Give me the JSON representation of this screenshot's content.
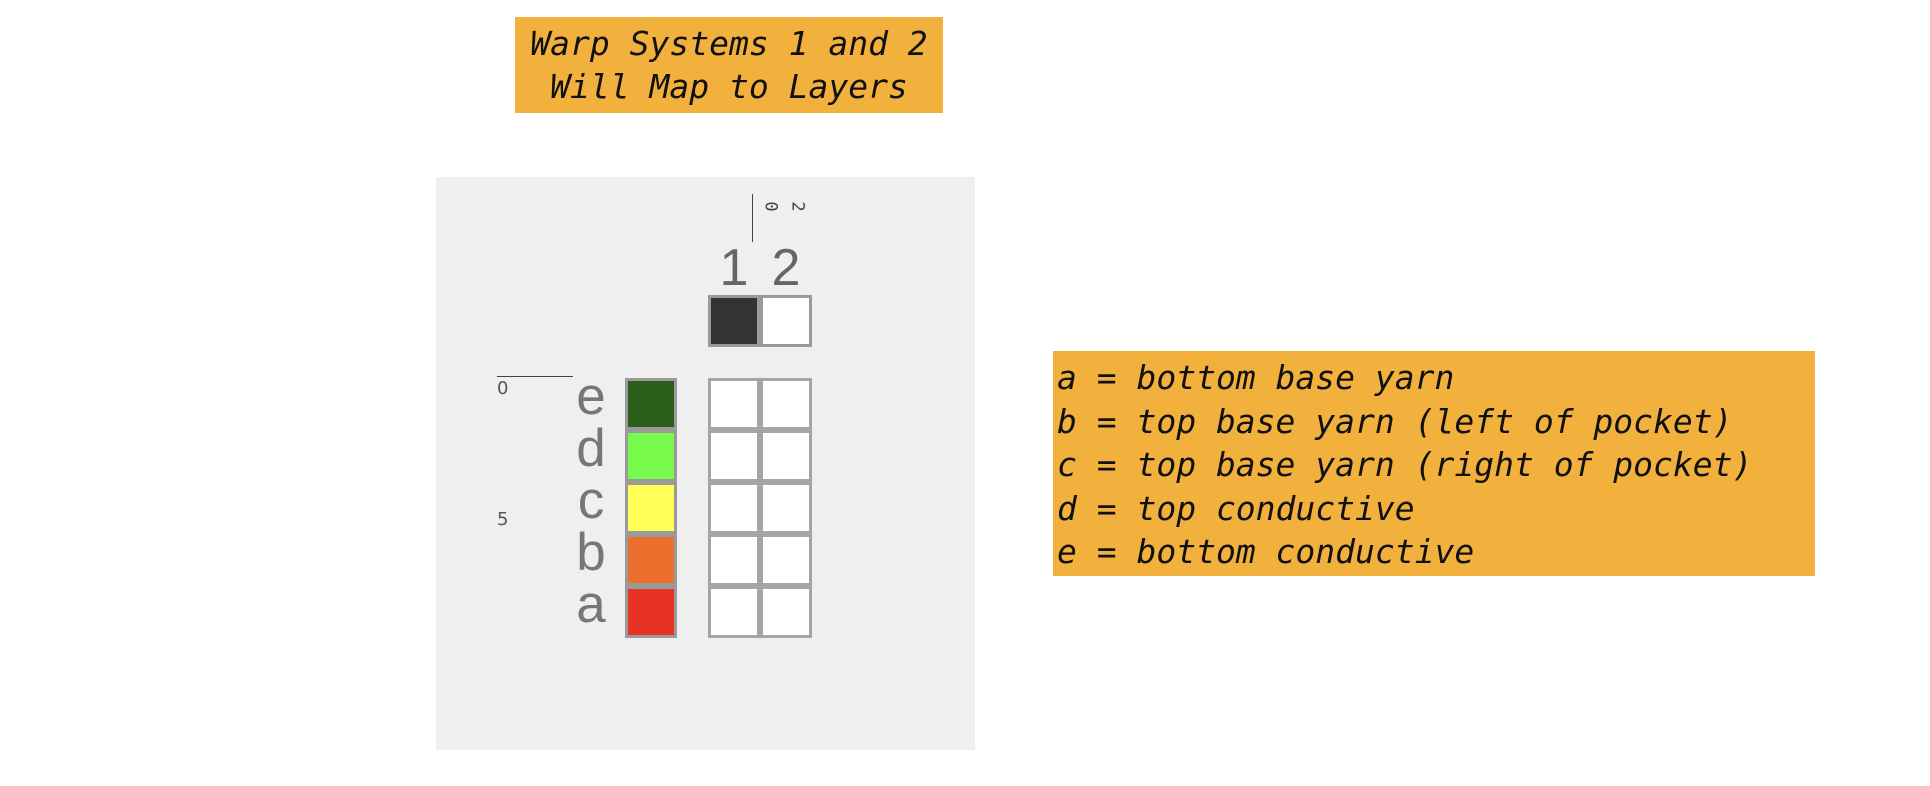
{
  "title_note": {
    "line1": "Warp Systems 1 and 2",
    "line2": "Will Map to Layers"
  },
  "legend_note": {
    "lines": [
      "a = bottom base yarn",
      "b = top base yarn (left of pocket)",
      "c = top base yarn (right of pocket)",
      "d = top conductive",
      "e = bottom conductive"
    ]
  },
  "draft": {
    "warp_column_ruler": {
      "start": "0",
      "end": "2"
    },
    "weft_row_ruler": {
      "start": "0",
      "mid": "5"
    },
    "warp_systems": [
      {
        "label": "1",
        "color": "#333333"
      },
      {
        "label": "2",
        "color": "#FFFFFF"
      }
    ],
    "weft_rows": [
      {
        "label": "e",
        "color": "#2A5E1A"
      },
      {
        "label": "d",
        "color": "#77FA4C"
      },
      {
        "label": "c",
        "color": "#FFFF57"
      },
      {
        "label": "b",
        "color": "#EC6F2E"
      },
      {
        "label": "a",
        "color": "#E83226"
      }
    ],
    "grid": {
      "rows": 5,
      "columns": 2,
      "cells": [
        [
          0,
          0
        ],
        [
          0,
          0
        ],
        [
          0,
          0
        ],
        [
          0,
          0
        ],
        [
          0,
          0
        ]
      ]
    }
  },
  "colors": {
    "note_background": "#F2B03D",
    "panel_background": "#EFEFEF"
  }
}
